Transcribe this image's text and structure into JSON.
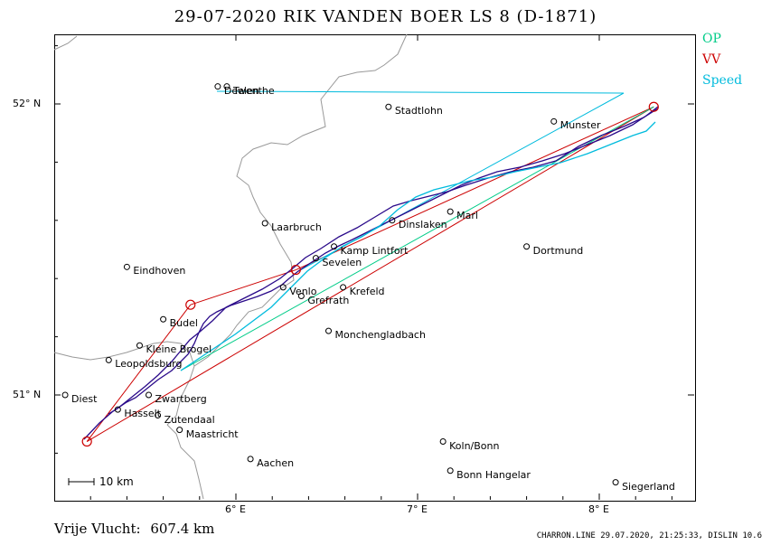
{
  "title": "29-07-2020   RIK VANDEN BOER   LS 8 (D-1871)",
  "legend": [
    {
      "label": "OP",
      "color": "#00cc88"
    },
    {
      "label": "VV",
      "color": "#cc0000"
    },
    {
      "label": "Speed",
      "color": "#00bbdd"
    }
  ],
  "axes": {
    "lat_ticks": [
      {
        "label": "52° N",
        "lat": 52.0
      },
      {
        "label": "51° N",
        "lat": 51.0
      }
    ],
    "lon_ticks": [
      {
        "label": "6° E",
        "lon": 6.0
      },
      {
        "label": "7° E",
        "lon": 7.0
      },
      {
        "label": "8° E",
        "lon": 8.0
      }
    ]
  },
  "cities": [
    {
      "name": "Stadtlohn",
      "lon": 6.84,
      "lat": 51.99
    },
    {
      "name": "Munster",
      "lon": 7.75,
      "lat": 51.94
    },
    {
      "name": "Laarbruch",
      "lon": 6.16,
      "lat": 51.59
    },
    {
      "name": "Dinslaken",
      "lon": 6.86,
      "lat": 51.6
    },
    {
      "name": "Marl",
      "lon": 7.18,
      "lat": 51.63
    },
    {
      "name": "Kamp Lintfort",
      "lon": 6.54,
      "lat": 51.51
    },
    {
      "name": "Dortmund",
      "lon": 7.6,
      "lat": 51.51
    },
    {
      "name": "Eindhoven",
      "lon": 5.4,
      "lat": 51.44
    },
    {
      "name": "Sevelen",
      "lon": 6.44,
      "lat": 51.47
    },
    {
      "name": "Krefeld",
      "lon": 6.59,
      "lat": 51.37
    },
    {
      "name": "Venlo",
      "lon": 6.26,
      "lat": 51.37
    },
    {
      "name": "Grefrath",
      "lon": 6.36,
      "lat": 51.34
    },
    {
      "name": "Budel",
      "lon": 5.6,
      "lat": 51.26
    },
    {
      "name": "Monchengladbach",
      "lon": 6.51,
      "lat": 51.22
    },
    {
      "name": "Kleine Brogel",
      "lon": 5.47,
      "lat": 51.17
    },
    {
      "name": "Leopoldsburg",
      "lon": 5.3,
      "lat": 51.12
    },
    {
      "name": "Diest",
      "lon": 5.06,
      "lat": 51.0
    },
    {
      "name": "Zwartberg",
      "lon": 5.52,
      "lat": 51.0
    },
    {
      "name": "Hasselt",
      "lon": 5.35,
      "lat": 50.95
    },
    {
      "name": "Zutendaal",
      "lon": 5.57,
      "lat": 50.93
    },
    {
      "name": "Maastricht",
      "lon": 5.69,
      "lat": 50.88
    },
    {
      "name": "Aachen",
      "lon": 6.08,
      "lat": 50.78
    },
    {
      "name": "Koln/Bonn",
      "lon": 7.14,
      "lat": 50.84
    },
    {
      "name": "Bonn Hangelar",
      "lon": 7.18,
      "lat": 50.74
    },
    {
      "name": "Siegerland",
      "lon": 8.09,
      "lat": 50.7
    },
    {
      "name": "Deelen",
      "lon": 5.9,
      "lat": 52.06
    },
    {
      "name": "Twenthe",
      "lon": 5.95,
      "lat": 52.06
    }
  ],
  "task": {
    "turnpoints": [
      {
        "lon": 5.18,
        "lat": 50.84
      },
      {
        "lon": 5.75,
        "lat": 51.31
      },
      {
        "lon": 6.33,
        "lat": 51.43
      },
      {
        "lon": 8.3,
        "lat": 51.99
      }
    ]
  },
  "scale_label": "10 km",
  "footer": {
    "distance_label": "Vrije Vlucht:",
    "distance_value": "607.4 km",
    "stamp": "CHARRON.LINE 29.07.2020, 21:25:33, DISLIN 10.6"
  }
}
